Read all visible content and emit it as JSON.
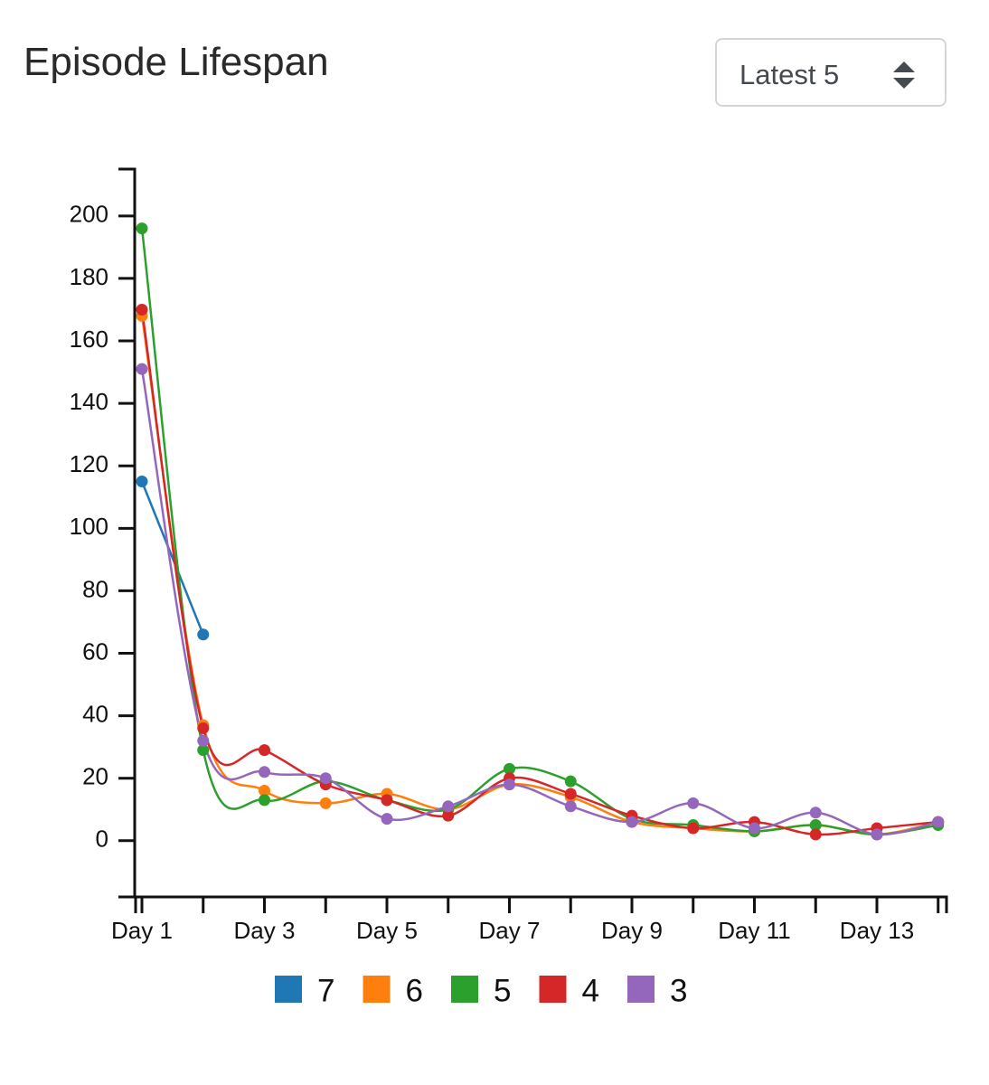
{
  "chart_data": {
    "type": "line",
    "title": "Episode Lifespan",
    "smooth": true,
    "categories": [
      "Day 1",
      null,
      "Day 3",
      null,
      "Day 5",
      null,
      "Day 7",
      null,
      "Day 9",
      null,
      "Day 11",
      null,
      "Day 13",
      null
    ],
    "series": [
      {
        "name": "7",
        "color": "#1f77b4",
        "values": [
          115,
          66,
          null,
          null,
          null,
          null,
          null,
          null,
          null,
          null,
          null,
          null,
          null,
          null
        ]
      },
      {
        "name": "6",
        "color": "#ff7f0e",
        "values": [
          168,
          37,
          16,
          12,
          15,
          10,
          18,
          14,
          6,
          4,
          3,
          5,
          2,
          6
        ]
      },
      {
        "name": "5",
        "color": "#2ca02c",
        "values": [
          196,
          29,
          13,
          19,
          13,
          10,
          23,
          19,
          7,
          5,
          3,
          5,
          2,
          5
        ]
      },
      {
        "name": "4",
        "color": "#d62728",
        "values": [
          170,
          36,
          29,
          18,
          13,
          8,
          20,
          15,
          8,
          4,
          6,
          2,
          4,
          6
        ]
      },
      {
        "name": "3",
        "color": "#9467bd",
        "values": [
          151,
          32,
          22,
          20,
          7,
          11,
          18,
          11,
          6,
          12,
          4,
          9,
          2,
          6
        ]
      }
    ],
    "ylim": [
      -18,
      215
    ],
    "yticks": [
      0,
      20,
      40,
      60,
      80,
      100,
      120,
      140,
      160,
      180,
      200
    ]
  },
  "controls": {
    "select": "Latest 5"
  }
}
